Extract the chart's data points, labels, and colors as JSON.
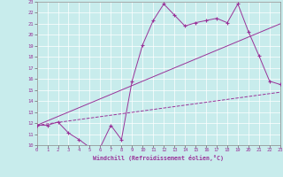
{
  "xlabel": "Windchill (Refroidissement éolien,°C)",
  "bg_color": "#c8ecec",
  "line_color": "#993399",
  "xmin": 0,
  "xmax": 23,
  "ymin": 10,
  "ymax": 23,
  "line1_x": [
    0,
    1,
    2,
    3,
    4,
    5,
    6,
    7,
    8,
    9,
    10,
    11,
    12,
    13,
    14,
    15,
    16,
    17,
    18,
    19,
    20,
    21,
    22,
    23
  ],
  "line1_y": [
    11.8,
    11.8,
    12.1,
    11.1,
    10.5,
    9.8,
    9.8,
    11.8,
    10.5,
    15.8,
    19.1,
    21.3,
    22.8,
    21.8,
    20.8,
    21.1,
    21.3,
    21.5,
    21.1,
    22.8,
    20.3,
    18.1,
    15.8,
    15.5
  ],
  "line2_x": [
    0,
    23
  ],
  "line2_y": [
    11.8,
    21.0
  ],
  "line3_x": [
    0,
    23
  ],
  "line3_y": [
    11.8,
    14.8
  ],
  "xticks": [
    0,
    1,
    2,
    3,
    4,
    5,
    6,
    7,
    8,
    9,
    10,
    11,
    12,
    13,
    14,
    15,
    16,
    17,
    18,
    19,
    20,
    21,
    22,
    23
  ],
  "yticks": [
    10,
    11,
    12,
    13,
    14,
    15,
    16,
    17,
    18,
    19,
    20,
    21,
    22,
    23
  ]
}
